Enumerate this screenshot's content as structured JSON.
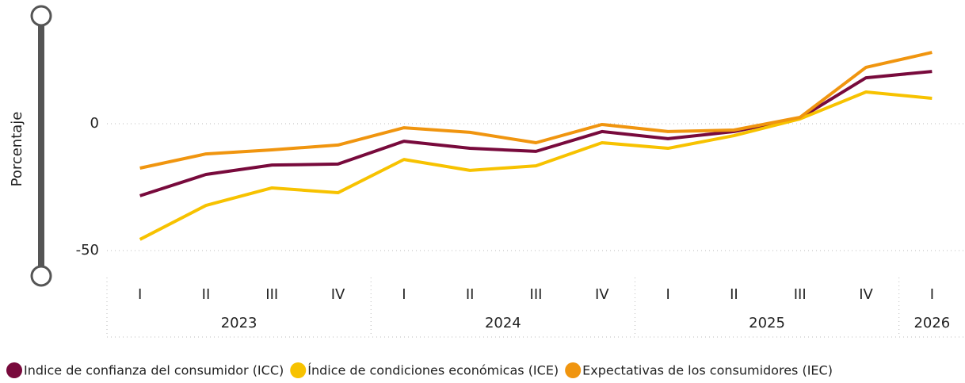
{
  "chart_data": {
    "type": "line",
    "y_label": "Porcentaje",
    "categories": [
      "I",
      "II",
      "III",
      "IV",
      "I",
      "II",
      "III",
      "IV",
      "I",
      "II",
      "III",
      "IV",
      "I"
    ],
    "years": [
      "2023",
      "2024",
      "2025",
      "2026"
    ],
    "series": [
      {
        "name": "Indice de confianza del consumidor (ICC)",
        "color": "#780a3c",
        "values": [
          -28.4,
          -20,
          -16.3,
          -15.9,
          -6.9,
          -9.7,
          -10.9,
          -3.1,
          -5.9,
          -3.1,
          2.2,
          18.1,
          20.6
        ]
      },
      {
        "name": "Índice de condiciones económicas (ICE)",
        "color": "#f7c200",
        "values": [
          -45.6,
          -32.2,
          -25.3,
          -27.2,
          -14.1,
          -18.4,
          -16.6,
          -7.5,
          -9.7,
          -4.7,
          1.9,
          12.5,
          10
        ]
      },
      {
        "name": "Expectativas de los consumidores (IEC)",
        "color": "#f0950f",
        "values": [
          -17.5,
          -11.9,
          -10.3,
          -8.4,
          -1.6,
          -3.4,
          -7.5,
          -0.3,
          -3.1,
          -2.5,
          2.5,
          22.2,
          28.1
        ]
      }
    ],
    "ylim": [
      -60,
      40
    ],
    "yticks": [
      -50,
      0
    ],
    "grid": true
  }
}
